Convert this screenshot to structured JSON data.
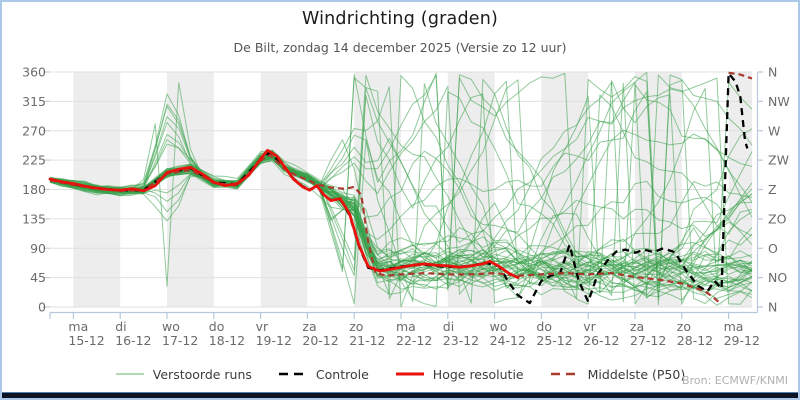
{
  "header": {
    "title": "Windrichting (graden)",
    "subtitle": "De Bilt, zondag 14 december 2025 (Versie zo 12 uur)"
  },
  "source": "Bron: ECMWF/KNMI",
  "colors": {
    "ensemble_line": "#38a04a",
    "ensemble_legend": "#b2d9b5",
    "control": "#000000",
    "hires": "#e8120c",
    "median": "#a93a2e",
    "day_band": "#ededed",
    "grid": "#e0e0e0",
    "axis": "#b6c8de",
    "left_tick": "#cccccc",
    "tick_text": "#6b6b6b",
    "frame_border": "#abc8ea",
    "bottom_bar": "#0c1322",
    "bottom_bar_line": "#4d7eb0",
    "source_text": "#b0b0b0"
  },
  "legend": [
    {
      "label": "Verstoorde runs",
      "style": "solid",
      "color": "#b2d9b5",
      "width": 2
    },
    {
      "label": "Controle",
      "style": "dashed",
      "color": "#000000",
      "width": 2.5
    },
    {
      "label": "Hoge resolutie",
      "style": "solid",
      "color": "#e8120c",
      "width": 3
    },
    {
      "label": "Middelste (P50)",
      "style": "dashed",
      "color": "#a93a2e",
      "width": 2.5
    }
  ],
  "chart_data": {
    "type": "line",
    "title": "Windrichting (graden)",
    "subtitle": "De Bilt, zondag 14 december 2025 (Versie zo 12 uur)",
    "x_axis": {
      "unit": "days since zo 14-12 12:00",
      "range": [
        0,
        15.05
      ],
      "day_ticks": [
        {
          "t": 0.5,
          "day": "ma",
          "date": "15-12"
        },
        {
          "t": 1.5,
          "day": "di",
          "date": "16-12"
        },
        {
          "t": 2.5,
          "day": "wo",
          "date": "17-12"
        },
        {
          "t": 3.5,
          "day": "do",
          "date": "18-12"
        },
        {
          "t": 4.5,
          "day": "vr",
          "date": "19-12"
        },
        {
          "t": 5.5,
          "day": "za",
          "date": "20-12"
        },
        {
          "t": 6.5,
          "day": "zo",
          "date": "21-12"
        },
        {
          "t": 7.5,
          "day": "ma",
          "date": "22-12"
        },
        {
          "t": 8.5,
          "day": "di",
          "date": "23-12"
        },
        {
          "t": 9.5,
          "day": "wo",
          "date": "24-12"
        },
        {
          "t": 10.5,
          "day": "do",
          "date": "25-12"
        },
        {
          "t": 11.5,
          "day": "vr",
          "date": "26-12"
        },
        {
          "t": 12.5,
          "day": "za",
          "date": "27-12"
        },
        {
          "t": 13.5,
          "day": "zo",
          "date": "28-12"
        },
        {
          "t": 14.5,
          "day": "ma",
          "date": "29-12"
        }
      ]
    },
    "y_axis": {
      "label": "graden",
      "range": [
        0,
        360
      ],
      "ticks": [
        0,
        45,
        90,
        135,
        180,
        225,
        270,
        315,
        360
      ],
      "right_labels": [
        "N",
        "NO",
        "O",
        "ZO",
        "Z",
        "ZW",
        "W",
        "NW",
        "N"
      ],
      "grid": true
    },
    "series": [
      {
        "name": "Hoge resolutie",
        "color": "#e8120c",
        "dash": null,
        "width": 2.8,
        "points": [
          [
            0,
            196
          ],
          [
            0.25,
            192
          ],
          [
            0.5,
            189
          ],
          [
            0.75,
            185
          ],
          [
            1,
            182
          ],
          [
            1.25,
            180
          ],
          [
            1.5,
            179
          ],
          [
            1.75,
            181
          ],
          [
            2,
            178
          ],
          [
            2.25,
            186
          ],
          [
            2.5,
            206
          ],
          [
            2.75,
            211
          ],
          [
            3,
            214
          ],
          [
            3.25,
            204
          ],
          [
            3.5,
            191
          ],
          [
            3.75,
            186
          ],
          [
            4,
            189
          ],
          [
            4.25,
            202
          ],
          [
            4.5,
            227
          ],
          [
            4.65,
            240
          ],
          [
            4.85,
            231
          ],
          [
            5,
            216
          ],
          [
            5.2,
            196
          ],
          [
            5.4,
            184
          ],
          [
            5.55,
            179
          ],
          [
            5.7,
            186
          ],
          [
            5.85,
            172
          ],
          [
            6,
            163
          ],
          [
            6.2,
            166
          ],
          [
            6.4,
            143
          ],
          [
            6.6,
            95
          ],
          [
            6.8,
            62
          ],
          [
            7.05,
            55
          ],
          [
            7.3,
            58
          ],
          [
            7.5,
            61
          ],
          [
            7.75,
            64
          ],
          [
            8,
            66
          ],
          [
            8.25,
            64
          ],
          [
            8.5,
            63
          ],
          [
            8.75,
            61
          ],
          [
            9,
            63
          ],
          [
            9.25,
            66
          ],
          [
            9.4,
            70
          ],
          [
            9.6,
            62
          ],
          [
            9.8,
            52
          ],
          [
            10,
            45
          ]
        ]
      },
      {
        "name": "Controle",
        "color": "#000000",
        "dash": "7 5",
        "width": 2.3,
        "points": [
          [
            0,
            196
          ],
          [
            0.5,
            188
          ],
          [
            1,
            182
          ],
          [
            1.5,
            179
          ],
          [
            2,
            179
          ],
          [
            2.5,
            205
          ],
          [
            3,
            213
          ],
          [
            3.5,
            191
          ],
          [
            4,
            188
          ],
          [
            4.5,
            226
          ],
          [
            4.7,
            237
          ],
          [
            5,
            215
          ],
          [
            5.2,
            197
          ],
          [
            5.4,
            185
          ],
          [
            5.55,
            180
          ],
          [
            5.7,
            185
          ],
          [
            5.85,
            171
          ],
          [
            6,
            164
          ],
          [
            6.2,
            165
          ],
          [
            6.4,
            141
          ],
          [
            6.6,
            93
          ],
          [
            6.8,
            60
          ],
          [
            7.05,
            56
          ],
          [
            7.5,
            62
          ],
          [
            8,
            65
          ],
          [
            8.5,
            61
          ],
          [
            9,
            63
          ],
          [
            9.3,
            68
          ],
          [
            9.6,
            62
          ],
          [
            9.8,
            38
          ],
          [
            10,
            18
          ],
          [
            10.25,
            6
          ],
          [
            10.5,
            40
          ],
          [
            10.7,
            48
          ],
          [
            10.9,
            52
          ],
          [
            11.1,
            95
          ],
          [
            11.3,
            40
          ],
          [
            11.5,
            8
          ],
          [
            11.7,
            50
          ],
          [
            11.9,
            70
          ],
          [
            12.1,
            85
          ],
          [
            12.3,
            88
          ],
          [
            12.5,
            83
          ],
          [
            12.7,
            88
          ],
          [
            12.9,
            84
          ],
          [
            13.1,
            90
          ],
          [
            13.35,
            84
          ],
          [
            13.6,
            55
          ],
          [
            13.85,
            32
          ],
          [
            14.05,
            24
          ],
          [
            14.2,
            40
          ],
          [
            14.35,
            28
          ],
          [
            14.5,
            358
          ],
          [
            14.65,
            345
          ],
          [
            14.75,
            322
          ],
          [
            14.85,
            255
          ],
          [
            14.9,
            243
          ]
        ]
      },
      {
        "name": "Middelste (P50)",
        "color": "#a93a2e",
        "dash": "6 4",
        "width": 2.2,
        "segments": [
          [
            [
              0,
              194
            ],
            [
              0.5,
              187
            ],
            [
              1,
              181
            ],
            [
              1.5,
              178
            ],
            [
              2,
              179
            ],
            [
              2.5,
              204
            ],
            [
              3,
              210
            ],
            [
              3.5,
              190
            ],
            [
              4,
              186
            ],
            [
              4.5,
              224
            ],
            [
              4.7,
              233
            ],
            [
              5,
              212
            ],
            [
              5.3,
              200
            ],
            [
              5.5,
              195
            ],
            [
              5.7,
              188
            ],
            [
              6,
              183
            ],
            [
              6.3,
              181
            ],
            [
              6.5,
              184
            ],
            [
              6.65,
              172
            ],
            [
              6.8,
              100
            ],
            [
              6.95,
              52
            ],
            [
              7.2,
              48
            ],
            [
              7.5,
              50
            ],
            [
              8,
              52
            ],
            [
              8.5,
              50
            ],
            [
              9,
              50
            ],
            [
              9.5,
              52
            ],
            [
              10,
              48
            ],
            [
              10.5,
              50
            ],
            [
              11,
              52
            ],
            [
              11.5,
              50
            ],
            [
              12,
              52
            ],
            [
              12.5,
              46
            ],
            [
              13,
              42
            ],
            [
              13.5,
              36
            ],
            [
              14,
              24
            ],
            [
              14.2,
              13
            ],
            [
              14.35,
              4
            ]
          ],
          [
            [
              14.5,
              359
            ],
            [
              14.75,
              356
            ],
            [
              15,
              350
            ]
          ]
        ]
      }
    ],
    "ensemble": {
      "name": "Verstoorde runs",
      "description": "50 perturbed ECMWF ensemble members; tight bundle around 180-200 deg for first 5 days with a spike toward 250-360 near wo 17-12, then strong divergence after za 20-12: a dense cluster near 40-90 deg and wide wandering members covering 0-360 deg (lines wrap across the N boundary).",
      "count": 50,
      "seed": 11,
      "step_days": 0.25,
      "t_end": 15,
      "base_path": [
        [
          0,
          195
        ],
        [
          0.5,
          188
        ],
        [
          1,
          182
        ],
        [
          1.5,
          179
        ],
        [
          2,
          180
        ],
        [
          2.5,
          206
        ],
        [
          3,
          212
        ],
        [
          3.5,
          191
        ],
        [
          4,
          188
        ],
        [
          4.5,
          227
        ],
        [
          4.7,
          236
        ],
        [
          5,
          214
        ],
        [
          5.5,
          198
        ],
        [
          6,
          173
        ],
        [
          6.5,
          148
        ],
        [
          6.75,
          95
        ],
        [
          7,
          60
        ],
        [
          7.5,
          58
        ],
        [
          8,
          60
        ],
        [
          9,
          60
        ],
        [
          10,
          55
        ],
        [
          11,
          55
        ],
        [
          12,
          56
        ],
        [
          13,
          55
        ],
        [
          14,
          52
        ],
        [
          15,
          50
        ]
      ]
    }
  }
}
